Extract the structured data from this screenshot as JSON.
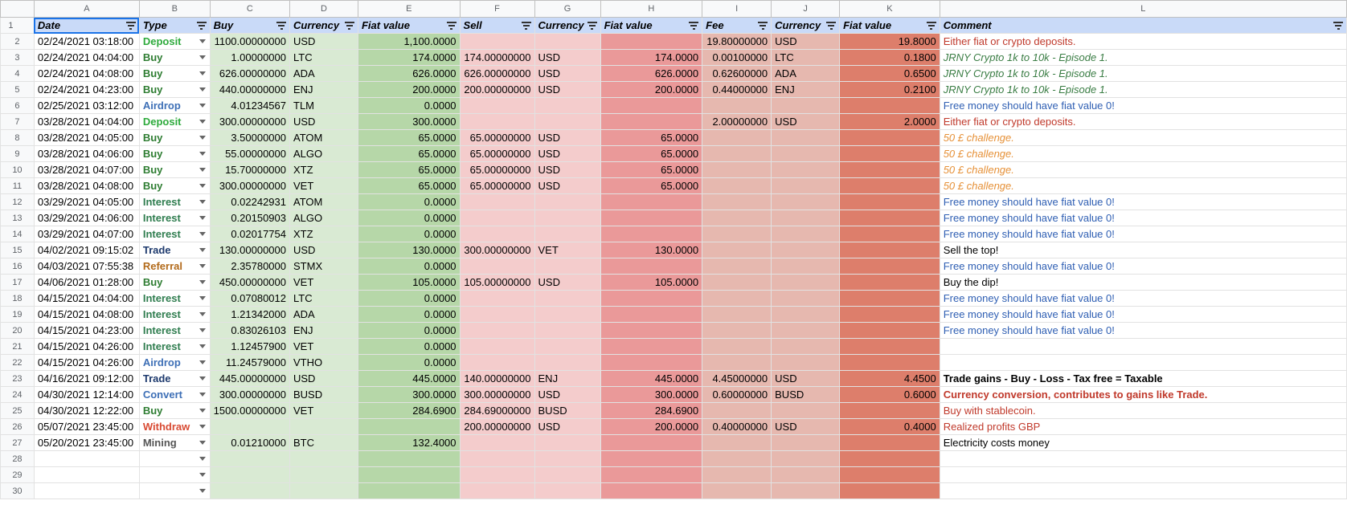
{
  "columns": [
    "A",
    "B",
    "C",
    "D",
    "E",
    "F",
    "G",
    "H",
    "I",
    "J",
    "K",
    "L"
  ],
  "headers": [
    "Date",
    "Type",
    "Buy",
    "Currency",
    "Fiat value",
    "Sell",
    "Currency",
    "Fiat value",
    "Fee",
    "Currency",
    "Fiat value",
    "Comment"
  ],
  "rows": [
    {
      "date": "02/24/2021 03:18:00",
      "type": "Deposit",
      "buy": "1100.00000000",
      "buy_cur": "USD",
      "buy_fiat": "1,100.0000",
      "sell": "",
      "sell_cur": "",
      "sell_fiat": "",
      "fee": "19.80000000",
      "fee_cur": "USD",
      "fee_fiat": "19.8000",
      "comment": "Either fiat or crypto deposits."
    },
    {
      "date": "02/24/2021 04:04:00",
      "type": "Buy",
      "buy": "1.00000000",
      "buy_cur": "LTC",
      "buy_fiat": "174.0000",
      "sell": "174.00000000",
      "sell_cur": "USD",
      "sell_fiat": "174.0000",
      "fee": "0.00100000",
      "fee_cur": "LTC",
      "fee_fiat": "0.1800",
      "comment": "JRNY Crypto 1k to 10k - Episode 1."
    },
    {
      "date": "02/24/2021 04:08:00",
      "type": "Buy",
      "buy": "626.00000000",
      "buy_cur": "ADA",
      "buy_fiat": "626.0000",
      "sell": "626.00000000",
      "sell_cur": "USD",
      "sell_fiat": "626.0000",
      "fee": "0.62600000",
      "fee_cur": "ADA",
      "fee_fiat": "0.6500",
      "comment": "JRNY Crypto 1k to 10k - Episode 1."
    },
    {
      "date": "02/24/2021 04:23:00",
      "type": "Buy",
      "buy": "440.00000000",
      "buy_cur": "ENJ",
      "buy_fiat": "200.0000",
      "sell": "200.00000000",
      "sell_cur": "USD",
      "sell_fiat": "200.0000",
      "fee": "0.44000000",
      "fee_cur": "ENJ",
      "fee_fiat": "0.2100",
      "comment": "JRNY Crypto 1k to 10k - Episode 1."
    },
    {
      "date": "02/25/2021 03:12:00",
      "type": "Airdrop",
      "buy": "4.01234567",
      "buy_cur": "TLM",
      "buy_fiat": "0.0000",
      "sell": "",
      "sell_cur": "",
      "sell_fiat": "",
      "fee": "",
      "fee_cur": "",
      "fee_fiat": "",
      "comment": "Free money should have fiat value 0!"
    },
    {
      "date": "03/28/2021 04:04:00",
      "type": "Deposit",
      "buy": "300.00000000",
      "buy_cur": "USD",
      "buy_fiat": "300.0000",
      "sell": "",
      "sell_cur": "",
      "sell_fiat": "",
      "fee": "2.00000000",
      "fee_cur": "USD",
      "fee_fiat": "2.0000",
      "comment": "Either fiat or crypto deposits."
    },
    {
      "date": "03/28/2021 04:05:00",
      "type": "Buy",
      "buy": "3.50000000",
      "buy_cur": "ATOM",
      "buy_fiat": "65.0000",
      "sell": "65.00000000",
      "sell_cur": "USD",
      "sell_fiat": "65.0000",
      "fee": "",
      "fee_cur": "",
      "fee_fiat": "",
      "comment": "50 £ challenge."
    },
    {
      "date": "03/28/2021 04:06:00",
      "type": "Buy",
      "buy": "55.00000000",
      "buy_cur": "ALGO",
      "buy_fiat": "65.0000",
      "sell": "65.00000000",
      "sell_cur": "USD",
      "sell_fiat": "65.0000",
      "fee": "",
      "fee_cur": "",
      "fee_fiat": "",
      "comment": "50 £ challenge."
    },
    {
      "date": "03/28/2021 04:07:00",
      "type": "Buy",
      "buy": "15.70000000",
      "buy_cur": "XTZ",
      "buy_fiat": "65.0000",
      "sell": "65.00000000",
      "sell_cur": "USD",
      "sell_fiat": "65.0000",
      "fee": "",
      "fee_cur": "",
      "fee_fiat": "",
      "comment": "50 £ challenge."
    },
    {
      "date": "03/28/2021 04:08:00",
      "type": "Buy",
      "buy": "300.00000000",
      "buy_cur": "VET",
      "buy_fiat": "65.0000",
      "sell": "65.00000000",
      "sell_cur": "USD",
      "sell_fiat": "65.0000",
      "fee": "",
      "fee_cur": "",
      "fee_fiat": "",
      "comment": "50 £ challenge."
    },
    {
      "date": "03/29/2021 04:05:00",
      "type": "Interest",
      "buy": "0.02242931",
      "buy_cur": "ATOM",
      "buy_fiat": "0.0000",
      "sell": "",
      "sell_cur": "",
      "sell_fiat": "",
      "fee": "",
      "fee_cur": "",
      "fee_fiat": "",
      "comment": "Free money should have fiat value 0!"
    },
    {
      "date": "03/29/2021 04:06:00",
      "type": "Interest",
      "buy": "0.20150903",
      "buy_cur": "ALGO",
      "buy_fiat": "0.0000",
      "sell": "",
      "sell_cur": "",
      "sell_fiat": "",
      "fee": "",
      "fee_cur": "",
      "fee_fiat": "",
      "comment": "Free money should have fiat value 0!"
    },
    {
      "date": "03/29/2021 04:07:00",
      "type": "Interest",
      "buy": "0.02017754",
      "buy_cur": "XTZ",
      "buy_fiat": "0.0000",
      "sell": "",
      "sell_cur": "",
      "sell_fiat": "",
      "fee": "",
      "fee_cur": "",
      "fee_fiat": "",
      "comment": "Free money should have fiat value 0!"
    },
    {
      "date": "04/02/2021 09:15:02",
      "type": "Trade",
      "buy": "130.00000000",
      "buy_cur": "USD",
      "buy_fiat": "130.0000",
      "sell": "300.00000000",
      "sell_cur": "VET",
      "sell_fiat": "130.0000",
      "fee": "",
      "fee_cur": "",
      "fee_fiat": "",
      "comment": "Sell the top!"
    },
    {
      "date": "04/03/2021 07:55:38",
      "type": "Referral",
      "buy": "2.35780000",
      "buy_cur": "STMX",
      "buy_fiat": "0.0000",
      "sell": "",
      "sell_cur": "",
      "sell_fiat": "",
      "fee": "",
      "fee_cur": "",
      "fee_fiat": "",
      "comment": "Free money should have fiat value 0!"
    },
    {
      "date": "04/06/2021 01:28:00",
      "type": "Buy",
      "buy": "450.00000000",
      "buy_cur": "VET",
      "buy_fiat": "105.0000",
      "sell": "105.00000000",
      "sell_cur": "USD",
      "sell_fiat": "105.0000",
      "fee": "",
      "fee_cur": "",
      "fee_fiat": "",
      "comment": "Buy the dip!"
    },
    {
      "date": "04/15/2021 04:04:00",
      "type": "Interest",
      "buy": "0.07080012",
      "buy_cur": "LTC",
      "buy_fiat": "0.0000",
      "sell": "",
      "sell_cur": "",
      "sell_fiat": "",
      "fee": "",
      "fee_cur": "",
      "fee_fiat": "",
      "comment": "Free money should have fiat value 0!"
    },
    {
      "date": "04/15/2021 04:08:00",
      "type": "Interest",
      "buy": "1.21342000",
      "buy_cur": "ADA",
      "buy_fiat": "0.0000",
      "sell": "",
      "sell_cur": "",
      "sell_fiat": "",
      "fee": "",
      "fee_cur": "",
      "fee_fiat": "",
      "comment": "Free money should have fiat value 0!"
    },
    {
      "date": "04/15/2021 04:23:00",
      "type": "Interest",
      "buy": "0.83026103",
      "buy_cur": "ENJ",
      "buy_fiat": "0.0000",
      "sell": "",
      "sell_cur": "",
      "sell_fiat": "",
      "fee": "",
      "fee_cur": "",
      "fee_fiat": "",
      "comment": "Free money should have fiat value 0!"
    },
    {
      "date": "04/15/2021 04:26:00",
      "type": "Interest",
      "buy": "1.12457900",
      "buy_cur": "VET",
      "buy_fiat": "0.0000",
      "sell": "",
      "sell_cur": "",
      "sell_fiat": "",
      "fee": "",
      "fee_cur": "",
      "fee_fiat": "",
      "comment": ""
    },
    {
      "date": "04/15/2021 04:26:00",
      "type": "Airdrop",
      "buy": "11.24579000",
      "buy_cur": "VTHO",
      "buy_fiat": "0.0000",
      "sell": "",
      "sell_cur": "",
      "sell_fiat": "",
      "fee": "",
      "fee_cur": "",
      "fee_fiat": "",
      "comment": ""
    },
    {
      "date": "04/16/2021 09:12:00",
      "type": "Trade",
      "buy": "445.00000000",
      "buy_cur": "USD",
      "buy_fiat": "445.0000",
      "sell": "140.00000000",
      "sell_cur": "ENJ",
      "sell_fiat": "445.0000",
      "fee": "4.45000000",
      "fee_cur": "USD",
      "fee_fiat": "4.4500",
      "comment": "Trade gains - Buy - Loss - Tax free = Taxable"
    },
    {
      "date": "04/30/2021 12:14:00",
      "type": "Convert",
      "buy": "300.00000000",
      "buy_cur": "BUSD",
      "buy_fiat": "300.0000",
      "sell": "300.00000000",
      "sell_cur": "USD",
      "sell_fiat": "300.0000",
      "fee": "0.60000000",
      "fee_cur": "BUSD",
      "fee_fiat": "0.6000",
      "comment": "Currency conversion, contributes to gains like Trade."
    },
    {
      "date": "04/30/2021 12:22:00",
      "type": "Buy",
      "buy": "1500.00000000",
      "buy_cur": "VET",
      "buy_fiat": "284.6900",
      "sell": "284.69000000",
      "sell_cur": "BUSD",
      "sell_fiat": "284.6900",
      "fee": "",
      "fee_cur": "",
      "fee_fiat": "",
      "comment": "Buy with stablecoin."
    },
    {
      "date": "05/07/2021 23:45:00",
      "type": "Withdraw",
      "buy": "",
      "buy_cur": "",
      "buy_fiat": "",
      "sell": "200.00000000",
      "sell_cur": "USD",
      "sell_fiat": "200.0000",
      "fee": "0.40000000",
      "fee_cur": "USD",
      "fee_fiat": "0.4000",
      "comment": "Realized profits GBP"
    },
    {
      "date": "05/20/2021 23:45:00",
      "type": "Mining",
      "buy": "0.01210000",
      "buy_cur": "BTC",
      "buy_fiat": "132.4000",
      "sell": "",
      "sell_cur": "",
      "sell_fiat": "",
      "fee": "",
      "fee_cur": "",
      "fee_fiat": "",
      "comment": "Electricity costs money"
    },
    {
      "date": "",
      "type": "",
      "buy": "",
      "buy_cur": "",
      "buy_fiat": "",
      "sell": "",
      "sell_cur": "",
      "sell_fiat": "",
      "fee": "",
      "fee_cur": "",
      "fee_fiat": "",
      "comment": ""
    },
    {
      "date": "",
      "type": "",
      "buy": "",
      "buy_cur": "",
      "buy_fiat": "",
      "sell": "",
      "sell_cur": "",
      "sell_fiat": "",
      "fee": "",
      "fee_cur": "",
      "fee_fiat": "",
      "comment": ""
    },
    {
      "date": "",
      "type": "",
      "buy": "",
      "buy_cur": "",
      "buy_fiat": "",
      "sell": "",
      "sell_cur": "",
      "sell_fiat": "",
      "fee": "",
      "fee_cur": "",
      "fee_fiat": "",
      "comment": ""
    }
  ],
  "type_colors": {
    "Deposit": "#2eaa3c",
    "Buy": "#2e7d32",
    "Airdrop": "#3d6fb6",
    "Interest": "#2f7d4f",
    "Trade": "#1f3b6e",
    "Referral": "#b26a1a",
    "Convert": "#3d6fb6",
    "Withdraw": "#d84a32",
    "Mining": "#555555"
  },
  "comment_styles": {
    "Either fiat or crypto deposits.": {
      "color": "#c0392b",
      "italic": false,
      "bold": false
    },
    "JRNY Crypto 1k to 10k - Episode 1.": {
      "color": "#3a7d44",
      "italic": true,
      "bold": false
    },
    "Free money should have fiat value 0!": {
      "color": "#2f5fb3",
      "italic": false,
      "bold": false
    },
    "50 £ challenge.": {
      "color": "#e69138",
      "italic": true,
      "bold": false
    },
    "Sell the top!": {
      "color": "#000000",
      "italic": false,
      "bold": false
    },
    "Buy the dip!": {
      "color": "#000000",
      "italic": false,
      "bold": false
    },
    "Trade gains - Buy - Loss - Tax free = Taxable": {
      "color": "#000000",
      "italic": false,
      "bold": true
    },
    "Currency conversion, contributes to gains like Trade.": {
      "color": "#c0392b",
      "italic": false,
      "bold": true
    },
    "Buy with stablecoin.": {
      "color": "#c0392b",
      "italic": false,
      "bold": false
    },
    "Realized profits GBP": {
      "color": "#c0392b",
      "italic": false,
      "bold": false
    },
    "Electricity costs money": {
      "color": "#000000",
      "italic": false,
      "bold": false
    }
  }
}
